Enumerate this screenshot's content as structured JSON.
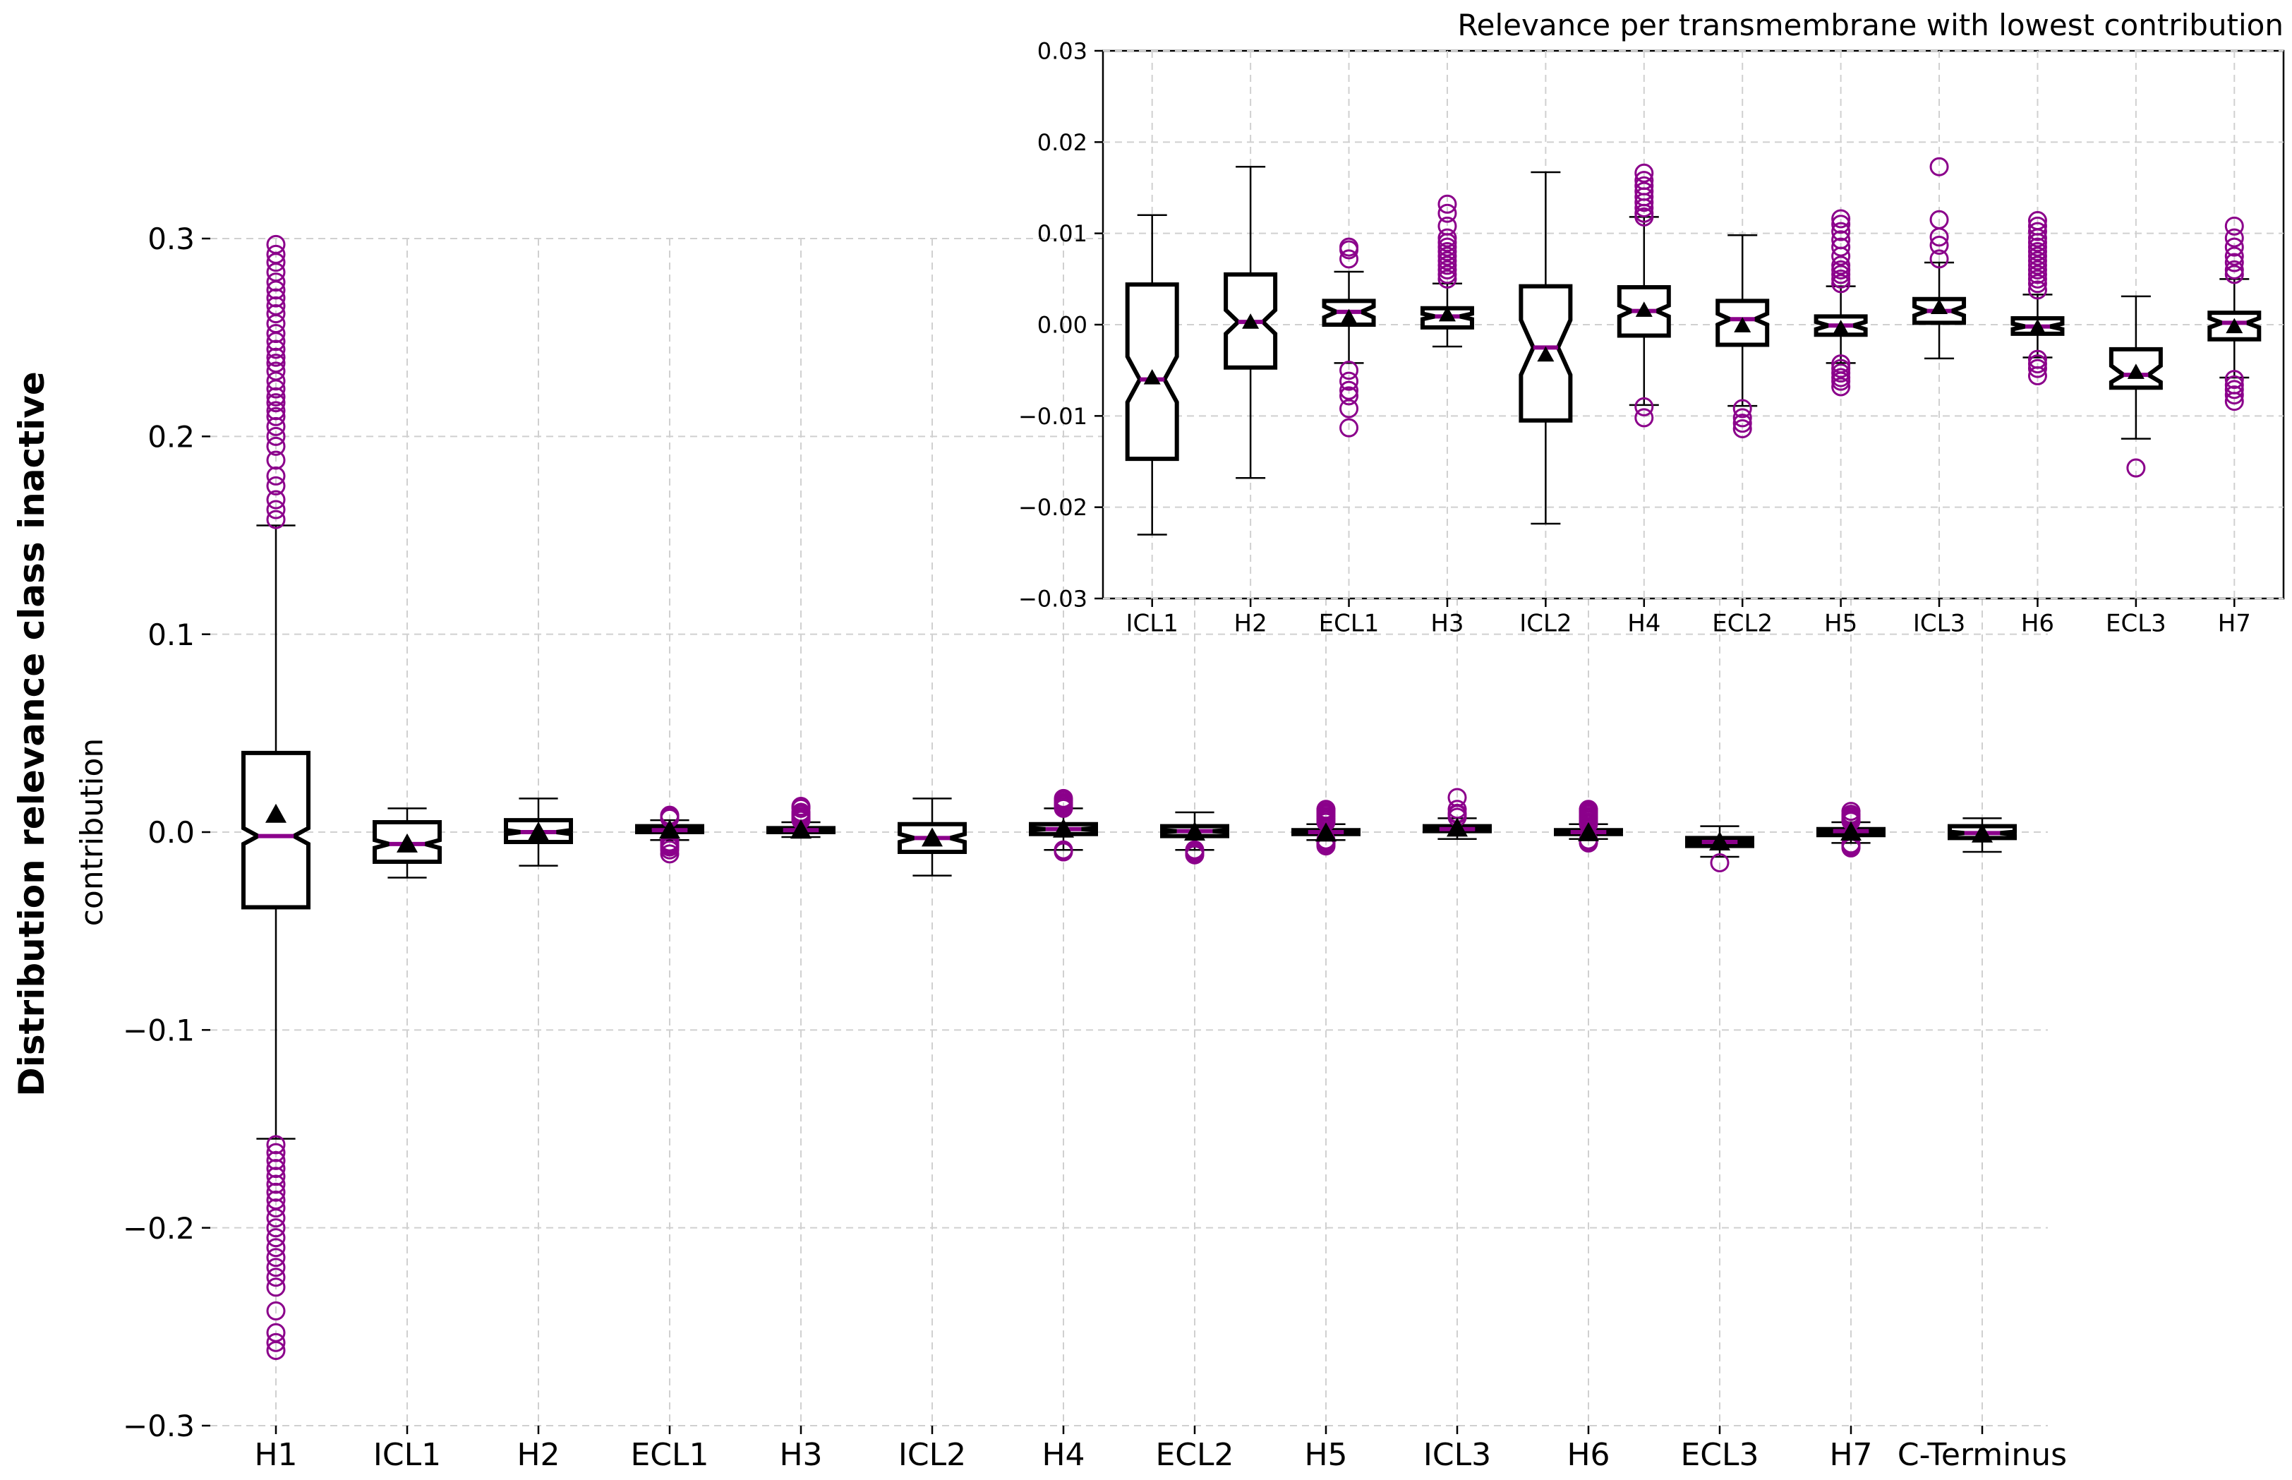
{
  "figure": {
    "suptitle": "Distribution relevance class inactive"
  },
  "colors": {
    "box": "#000000",
    "median": "#8b008b",
    "outlier": "#8b008b",
    "mean": "#000000",
    "grid": "#d0d0d0"
  },
  "chart_data": [
    {
      "id": "main",
      "type": "box",
      "title": "",
      "xlabel": "",
      "ylabel": "contribution",
      "ylim": [
        -0.3,
        0.3
      ],
      "yticks": [
        -0.3,
        -0.2,
        -0.1,
        0.0,
        0.1,
        0.2,
        0.3
      ],
      "ytick_labels": [
        "−0.3",
        "−0.2",
        "−0.1",
        "0.0",
        "0.1",
        "0.2",
        "0.3"
      ],
      "grid": true,
      "notched": true,
      "categories": [
        "H1",
        "ICL1",
        "H2",
        "ECL1",
        "H3",
        "ICL2",
        "H4",
        "ECL2",
        "H5",
        "ICL3",
        "H6",
        "ECL3",
        "H7",
        "C-Terminus"
      ],
      "boxes": [
        {
          "q1": -0.038,
          "median": -0.002,
          "q3": 0.04,
          "notch_low": -0.006,
          "notch_high": 0.002,
          "whisker_low": -0.155,
          "whisker_high": 0.155,
          "mean": 0.009,
          "outliers": [
            0.158,
            0.163,
            0.168,
            0.175,
            0.18,
            0.188,
            0.195,
            0.2,
            0.205,
            0.21,
            0.213,
            0.217,
            0.22,
            0.224,
            0.228,
            0.233,
            0.237,
            0.24,
            0.244,
            0.248,
            0.252,
            0.257,
            0.262,
            0.266,
            0.27,
            0.274,
            0.278,
            0.283,
            0.288,
            0.292,
            0.297,
            -0.158,
            -0.162,
            -0.166,
            -0.17,
            -0.174,
            -0.178,
            -0.182,
            -0.186,
            -0.19,
            -0.195,
            -0.2,
            -0.205,
            -0.21,
            -0.215,
            -0.22,
            -0.225,
            -0.23,
            -0.242,
            -0.253,
            -0.258,
            -0.262
          ]
        },
        {
          "q1": -0.015,
          "median": -0.006,
          "q3": 0.005,
          "notch_low": -0.008,
          "notch_high": -0.004,
          "whisker_low": -0.023,
          "whisker_high": 0.012,
          "mean": -0.006,
          "outliers": []
        },
        {
          "q1": -0.005,
          "median": 0.0,
          "q3": 0.006,
          "notch_low": -0.001,
          "notch_high": 0.001,
          "whisker_low": -0.017,
          "whisker_high": 0.017,
          "mean": 0.0,
          "outliers": []
        },
        {
          "q1": 0.0,
          "median": 0.001,
          "q3": 0.003,
          "notch_low": 0.0005,
          "notch_high": 0.0015,
          "whisker_low": -0.004,
          "whisker_high": 0.006,
          "mean": 0.001,
          "outliers": [
            0.007,
            0.008,
            0.0085,
            -0.005,
            -0.006,
            -0.007,
            -0.0075,
            -0.009,
            -0.011
          ]
        },
        {
          "q1": 0.0,
          "median": 0.001,
          "q3": 0.002,
          "notch_low": 0.0007,
          "notch_high": 0.0013,
          "whisker_low": -0.0025,
          "whisker_high": 0.005,
          "mean": 0.001,
          "outliers": [
            0.006,
            0.0065,
            0.007,
            0.008,
            0.009,
            0.01,
            0.012,
            0.013
          ]
        },
        {
          "q1": -0.01,
          "median": -0.003,
          "q3": 0.004,
          "notch_low": -0.005,
          "notch_high": -0.001,
          "whisker_low": -0.022,
          "whisker_high": 0.017,
          "mean": -0.003,
          "outliers": []
        },
        {
          "q1": -0.001,
          "median": 0.0015,
          "q3": 0.004,
          "notch_low": 0.001,
          "notch_high": 0.002,
          "whisker_low": -0.009,
          "whisker_high": 0.012,
          "mean": 0.0015,
          "outliers": [
            0.012,
            0.013,
            0.014,
            0.015,
            0.016,
            0.017,
            -0.009,
            -0.01
          ]
        },
        {
          "q1": -0.002,
          "median": 0.0005,
          "q3": 0.003,
          "notch_low": 0.0,
          "notch_high": 0.001,
          "whisker_low": -0.009,
          "whisker_high": 0.01,
          "mean": 0.0,
          "outliers": [
            -0.009,
            -0.01,
            -0.011,
            -0.0115
          ]
        },
        {
          "q1": -0.001,
          "median": 0.0,
          "q3": 0.001,
          "notch_low": -0.0003,
          "notch_high": 0.0003,
          "whisker_low": -0.004,
          "whisker_high": 0.004,
          "mean": -0.0005,
          "outliers": [
            0.005,
            0.006,
            0.007,
            0.008,
            0.009,
            0.01,
            0.011,
            0.0115,
            -0.004,
            -0.005,
            -0.0055,
            -0.006,
            -0.0065,
            -0.007
          ]
        },
        {
          "q1": 0.0005,
          "median": 0.0015,
          "q3": 0.003,
          "notch_low": 0.001,
          "notch_high": 0.002,
          "whisker_low": -0.0035,
          "whisker_high": 0.007,
          "mean": 0.002,
          "outliers": [
            0.0075,
            0.009,
            0.0095,
            0.0115,
            0.0175
          ]
        },
        {
          "q1": -0.001,
          "median": 0.0,
          "q3": 0.001,
          "notch_low": -0.0003,
          "notch_high": 0.0003,
          "whisker_low": -0.0035,
          "whisker_high": 0.004,
          "mean": -0.0003,
          "outliers": [
            0.004,
            0.005,
            0.006,
            0.007,
            0.0075,
            0.008,
            0.009,
            0.01,
            0.0105,
            0.011,
            0.0115,
            -0.004,
            -0.0045,
            -0.005,
            -0.0055
          ]
        },
        {
          "q1": -0.007,
          "median": -0.005,
          "q3": -0.003,
          "notch_low": -0.0058,
          "notch_high": -0.0042,
          "whisker_low": -0.0125,
          "whisker_high": 0.003,
          "mean": -0.005,
          "outliers": [
            -0.0155
          ]
        },
        {
          "q1": -0.0015,
          "median": 0.0005,
          "q3": 0.0015,
          "notch_low": 0.0,
          "notch_high": 0.001,
          "whisker_low": -0.0055,
          "whisker_high": 0.005,
          "mean": 0.0,
          "outliers": [
            0.0055,
            0.006,
            0.007,
            0.008,
            0.009,
            0.0105,
            -0.006,
            -0.0065,
            -0.007,
            -0.0075,
            -0.008
          ]
        },
        {
          "q1": -0.003,
          "median": -0.0005,
          "q3": 0.003,
          "notch_low": -0.0012,
          "notch_high": 0.0002,
          "whisker_low": -0.01,
          "whisker_high": 0.007,
          "mean": -0.001,
          "outliers": []
        }
      ]
    },
    {
      "id": "inset",
      "type": "box",
      "title": "Relevance per transmembrane with lowest contribution",
      "xlabel": "",
      "ylabel": "",
      "ylim": [
        -0.03,
        0.03
      ],
      "yticks": [
        -0.03,
        -0.02,
        -0.01,
        0.0,
        0.01,
        0.02,
        0.03
      ],
      "ytick_labels": [
        "−0.03",
        "−0.02",
        "−0.01",
        "0.00",
        "0.01",
        "0.02",
        "0.03"
      ],
      "grid": true,
      "notched": true,
      "categories": [
        "ICL1",
        "H2",
        "ECL1",
        "H3",
        "ICL2",
        "H4",
        "ECL2",
        "H5",
        "ICL3",
        "H6",
        "ECL3",
        "H7"
      ],
      "boxes": [
        {
          "q1": -0.0147,
          "median": -0.006,
          "q3": 0.0044,
          "notch_low": -0.0085,
          "notch_high": -0.0035,
          "whisker_low": -0.023,
          "whisker_high": 0.012,
          "mean": -0.0058,
          "outliers": []
        },
        {
          "q1": -0.0047,
          "median": 0.0003,
          "q3": 0.0055,
          "notch_low": -0.001,
          "notch_high": 0.0016,
          "whisker_low": -0.0168,
          "whisker_high": 0.0173,
          "mean": 0.0003,
          "outliers": []
        },
        {
          "q1": 0.0,
          "median": 0.0014,
          "q3": 0.0026,
          "notch_low": 0.0008,
          "notch_high": 0.002,
          "whisker_low": -0.0042,
          "whisker_high": 0.0058,
          "mean": 0.0008,
          "outliers": [
            0.0072,
            0.0082,
            0.0085,
            -0.005,
            -0.0062,
            -0.0072,
            -0.0078,
            -0.0092,
            -0.0113
          ]
        },
        {
          "q1": -0.0003,
          "median": 0.0009,
          "q3": 0.0018,
          "notch_low": 0.0006,
          "notch_high": 0.0012,
          "whisker_low": -0.0024,
          "whisker_high": 0.0045,
          "mean": 0.0011,
          "outliers": [
            0.005,
            0.0055,
            0.006,
            0.0065,
            0.007,
            0.0075,
            0.008,
            0.0085,
            0.009,
            0.0095,
            0.0108,
            0.0122,
            0.0132
          ]
        },
        {
          "q1": -0.0105,
          "median": -0.0025,
          "q3": 0.0042,
          "notch_low": -0.0055,
          "notch_high": 0.0005,
          "whisker_low": -0.0218,
          "whisker_high": 0.0167,
          "mean": -0.0033,
          "outliers": []
        },
        {
          "q1": -0.0012,
          "median": 0.0015,
          "q3": 0.0041,
          "notch_low": 0.0009,
          "notch_high": 0.0021,
          "whisker_low": -0.0088,
          "whisker_high": 0.0118,
          "mean": 0.0016,
          "outliers": [
            0.0118,
            0.0122,
            0.0128,
            0.0134,
            0.014,
            0.0146,
            0.0152,
            0.0158,
            0.0166,
            -0.009,
            -0.0102
          ]
        },
        {
          "q1": -0.0022,
          "median": 0.0006,
          "q3": 0.0026,
          "notch_low": 0.0,
          "notch_high": 0.0012,
          "whisker_low": -0.0089,
          "whisker_high": 0.0098,
          "mean": -0.0001,
          "outliers": [
            -0.0092,
            -0.0102,
            -0.0108,
            -0.0114
          ]
        },
        {
          "q1": -0.0011,
          "median": -0.0001,
          "q3": 0.0009,
          "notch_low": -0.0005,
          "notch_high": 0.0003,
          "whisker_low": -0.0042,
          "whisker_high": 0.0042,
          "mean": -0.0004,
          "outliers": [
            0.0045,
            0.005,
            0.0055,
            0.006,
            0.0065,
            0.0075,
            0.0085,
            0.0093,
            0.0102,
            0.011,
            0.0116,
            -0.0043,
            -0.0048,
            -0.0053,
            -0.0058,
            -0.0062,
            -0.0068
          ]
        },
        {
          "q1": 0.0002,
          "median": 0.0015,
          "q3": 0.0028,
          "notch_low": 0.001,
          "notch_high": 0.002,
          "whisker_low": -0.0037,
          "whisker_high": 0.0068,
          "mean": 0.0019,
          "outliers": [
            0.0072,
            0.0087,
            0.0096,
            0.0115,
            0.0173
          ]
        },
        {
          "q1": -0.001,
          "median": -0.0002,
          "q3": 0.0007,
          "notch_low": -0.0005,
          "notch_high": 0.0001,
          "whisker_low": -0.0036,
          "whisker_high": 0.0033,
          "mean": -0.0003,
          "outliers": [
            0.0038,
            0.0045,
            0.005,
            0.0055,
            0.006,
            0.0065,
            0.007,
            0.0075,
            0.008,
            0.0085,
            0.009,
            0.0095,
            0.0102,
            0.0108,
            0.0114,
            -0.0038,
            -0.0043,
            -0.0048,
            -0.0056
          ]
        },
        {
          "q1": -0.0069,
          "median": -0.0055,
          "q3": -0.0027,
          "notch_low": -0.0063,
          "notch_high": -0.0045,
          "whisker_low": -0.0125,
          "whisker_high": 0.0031,
          "mean": -0.0052,
          "outliers": [
            -0.0157
          ]
        },
        {
          "q1": -0.0016,
          "median": 0.0002,
          "q3": 0.0013,
          "notch_low": -0.0003,
          "notch_high": 0.0007,
          "whisker_low": -0.0058,
          "whisker_high": 0.005,
          "mean": -0.0002,
          "outliers": [
            0.0055,
            0.006,
            0.0068,
            0.0075,
            0.0085,
            0.0095,
            0.0108,
            -0.006,
            -0.0066,
            -0.0071,
            -0.0077,
            -0.0084
          ]
        }
      ]
    }
  ]
}
